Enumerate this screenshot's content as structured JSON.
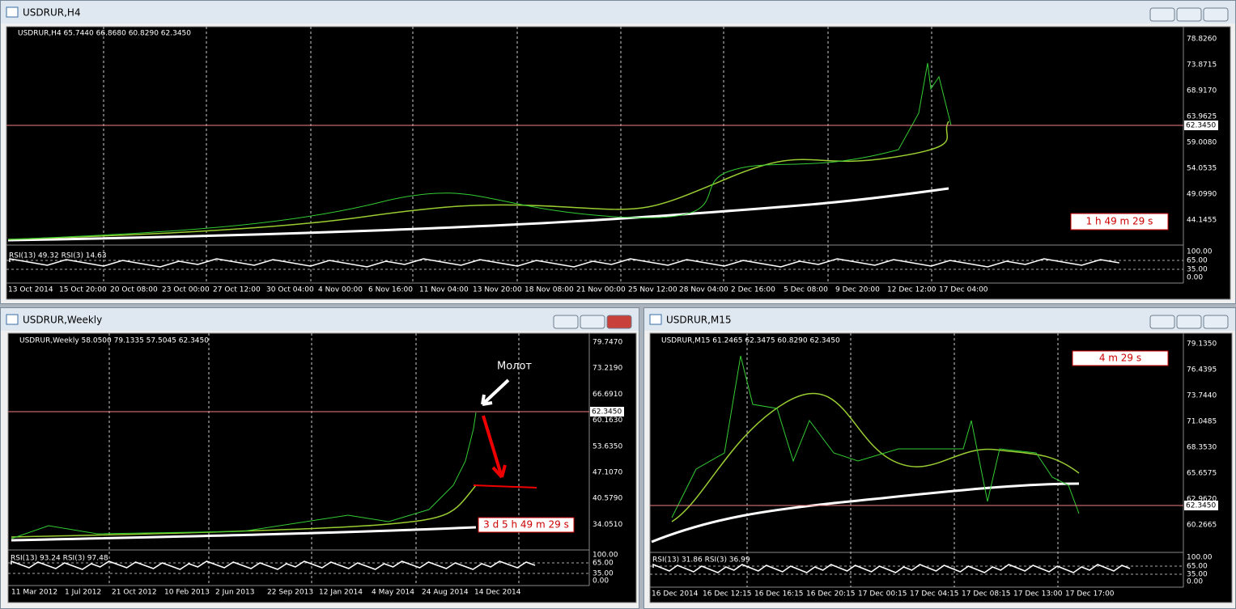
{
  "windows": [
    {
      "title": "USDRUR,H4",
      "header": "USDRUR,H4  65.7440 66.8680 60.8290 62.3450",
      "rsi_label": "RSI(13) 49.32 RSI(3) 14.63",
      "timer": "1 h 49 m 29 s",
      "current_price": "62.3450",
      "price_axis": [
        "78.8260",
        "73.8715",
        "68.9170",
        "63.9625",
        "59.0080",
        "54.0535",
        "49.0990",
        "44.1455"
      ],
      "rsi_axis": [
        "100.00",
        "65.00",
        "35.00",
        "0.00"
      ],
      "time_axis": [
        "13 Oct 2014",
        "15 Oct 20:00",
        "20 Oct 08:00",
        "23 Oct 00:00",
        "27 Oct 12:00",
        "30 Oct 04:00",
        "4 Nov 00:00",
        "6 Nov 16:00",
        "11 Nov 04:00",
        "13 Nov 20:00",
        "18 Nov 08:00",
        "21 Nov 00:00",
        "25 Nov 12:00",
        "28 Nov 04:00",
        "2 Dec 16:00",
        "5 Dec 08:00",
        "9 Dec 20:00",
        "12 Dec 12:00",
        "17 Dec 04:00"
      ]
    },
    {
      "title": "USDRUR,Weekly",
      "header": "USDRUR,Weekly  58.0500 79.1335 57.5045 62.3450",
      "rsi_label": "RSI(13) 93.24 RSI(3) 97.48",
      "timer": "3 d 5 h 49 m 29 s",
      "current_price": "62.3450",
      "price_axis": [
        "79.7470",
        "73.2190",
        "66.6910",
        "60.1630",
        "53.6350",
        "47.1070",
        "40.5790",
        "34.0510"
      ],
      "rsi_axis": [
        "100.00",
        "65.00",
        "35.00",
        "0.00"
      ],
      "time_axis": [
        "11 Mar 2012",
        "1 Jul 2012",
        "21 Oct 2012",
        "10 Feb 2013",
        "2 Jun 2013",
        "22 Sep 2013",
        "12 Jan 2014",
        "4 May 2014",
        "24 Aug 2014",
        "14 Dec 2014"
      ],
      "annotation": "Молот"
    },
    {
      "title": "USDRUR,M15",
      "header": "USDRUR,M15  61.2465 62.3475 60.8290 62.3450",
      "rsi_label": "RSI(13) 31.86 RSI(3) 36.99",
      "timer": "4 m 29 s",
      "current_price": "62.3450",
      "price_axis": [
        "79.1350",
        "76.4395",
        "73.7440",
        "71.0485",
        "68.3530",
        "65.6575",
        "62.9620",
        "60.2665"
      ],
      "rsi_axis": [
        "100.00",
        "65.00",
        "35.00",
        "0.00"
      ],
      "time_axis": [
        "16 Dec 2014",
        "16 Dec 12:15",
        "16 Dec 16:15",
        "16 Dec 20:15",
        "17 Dec 00:15",
        "17 Dec 04:15",
        "17 Dec 08:15",
        "17 Dec 13:00",
        "17 Dec 17:00"
      ]
    }
  ]
}
